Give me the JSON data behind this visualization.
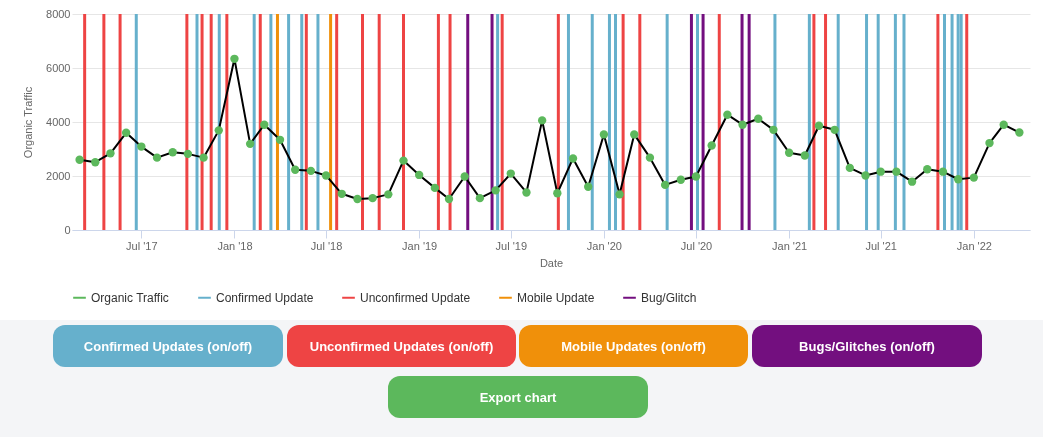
{
  "chart_data": {
    "type": "line",
    "xlabel": "Date",
    "ylabel": "Organic Traffic",
    "x": [
      "2017-03",
      "2017-04",
      "2017-05",
      "2017-06",
      "2017-07",
      "2017-08",
      "2017-09",
      "2017-10",
      "2017-11",
      "2017-12",
      "2018-01",
      "2018-02",
      "2018-03",
      "2018-04",
      "2018-05",
      "2018-06",
      "2018-07",
      "2018-08",
      "2018-09",
      "2018-10",
      "2018-11",
      "2018-12",
      "2019-01",
      "2019-02",
      "2019-03",
      "2019-04",
      "2019-05",
      "2019-06",
      "2019-07",
      "2019-08",
      "2019-09",
      "2019-10",
      "2019-11",
      "2019-12",
      "2020-01",
      "2020-02",
      "2020-03",
      "2020-04",
      "2020-05",
      "2020-06",
      "2020-07",
      "2020-08",
      "2020-09",
      "2020-10",
      "2020-11",
      "2020-12",
      "2021-01",
      "2021-02",
      "2021-03",
      "2021-04",
      "2021-05",
      "2021-06",
      "2021-07",
      "2021-08",
      "2021-09",
      "2021-10",
      "2021-11",
      "2021-12",
      "2022-01",
      "2022-02",
      "2022-03",
      "2022-04"
    ],
    "series": [
      {
        "name": "Organic Traffic",
        "color": "#5cb85c",
        "values": [
          2600,
          2510,
          2840,
          3600,
          3090,
          2680,
          2880,
          2820,
          2680,
          3690,
          6340,
          3190,
          3900,
          3340,
          2230,
          2190,
          2020,
          1340,
          1150,
          1180,
          1320,
          2570,
          2040,
          1560,
          1150,
          1980,
          1180,
          1470,
          2090,
          1390,
          4060,
          1360,
          2650,
          1600,
          3540,
          1320,
          3540,
          2680,
          1670,
          1860,
          1980,
          3130,
          4270,
          3900,
          4120,
          3710,
          2860,
          2760,
          3860,
          3710,
          2300,
          2020,
          2160,
          2160,
          1790,
          2250,
          2160,
          1880,
          1940,
          3220,
          3900,
          3610
        ]
      }
    ],
    "xlim": [
      "2017-02-14",
      "2022-04-22"
    ],
    "xticks": [
      {
        "value": "2017-07-01",
        "label": "Jul '17"
      },
      {
        "value": "2018-01-01",
        "label": "Jan '18"
      },
      {
        "value": "2018-07-01",
        "label": "Jul '18"
      },
      {
        "value": "2019-01-01",
        "label": "Jan '19"
      },
      {
        "value": "2019-07-01",
        "label": "Jul '19"
      },
      {
        "value": "2020-01-01",
        "label": "Jan '20"
      },
      {
        "value": "2020-07-01",
        "label": "Jul '20"
      },
      {
        "value": "2021-01-01",
        "label": "Jan '21"
      },
      {
        "value": "2021-07-01",
        "label": "Jul '21"
      },
      {
        "value": "2022-01-01",
        "label": "Jan '22"
      }
    ],
    "ylim": [
      0,
      8000
    ],
    "yticks": [
      0,
      2000,
      4000,
      6000,
      8000
    ],
    "grid": "y",
    "marker": "circle",
    "legend": "bottom",
    "ref_lines": [
      {
        "axis": "x",
        "value": "2017-06-21",
        "label": "Confirmed Update",
        "color": "#66b0cc"
      },
      {
        "axis": "x",
        "value": "2017-10-19",
        "color": "#66b0cc"
      },
      {
        "axis": "x",
        "value": "2017-12-02",
        "color": "#66b0cc"
      },
      {
        "axis": "x",
        "value": "2018-02-09",
        "color": "#66b0cc"
      },
      {
        "axis": "x",
        "value": "2018-03-14",
        "color": "#66b0cc"
      },
      {
        "axis": "x",
        "value": "2018-04-18",
        "color": "#66b0cc"
      },
      {
        "axis": "x",
        "value": "2018-05-14",
        "color": "#66b0cc"
      },
      {
        "axis": "x",
        "value": "2018-06-15",
        "color": "#66b0cc"
      },
      {
        "axis": "x",
        "value": "2019-06-05",
        "color": "#66b0cc"
      },
      {
        "axis": "x",
        "value": "2019-10-23",
        "color": "#66b0cc"
      },
      {
        "axis": "x",
        "value": "2019-12-09",
        "color": "#66b0cc"
      },
      {
        "axis": "x",
        "value": "2020-01-12",
        "color": "#66b0cc"
      },
      {
        "axis": "x",
        "value": "2020-01-24",
        "color": "#66b0cc"
      },
      {
        "axis": "x",
        "value": "2020-05-05",
        "color": "#66b0cc"
      },
      {
        "axis": "x",
        "value": "2020-07-04",
        "color": "#66b0cc"
      },
      {
        "axis": "x",
        "value": "2020-12-04",
        "color": "#66b0cc"
      },
      {
        "axis": "x",
        "value": "2021-02-10",
        "color": "#66b0cc"
      },
      {
        "axis": "x",
        "value": "2021-04-08",
        "color": "#66b0cc"
      },
      {
        "axis": "x",
        "value": "2021-06-03",
        "color": "#66b0cc"
      },
      {
        "axis": "x",
        "value": "2021-06-26",
        "color": "#66b0cc"
      },
      {
        "axis": "x",
        "value": "2021-07-30",
        "color": "#66b0cc"
      },
      {
        "axis": "x",
        "value": "2021-08-16",
        "color": "#66b0cc"
      },
      {
        "axis": "x",
        "value": "2021-11-04",
        "color": "#66b0cc"
      },
      {
        "axis": "x",
        "value": "2021-11-19",
        "color": "#66b0cc"
      },
      {
        "axis": "x",
        "value": "2021-12-01",
        "color": "#66b0cc"
      },
      {
        "axis": "x",
        "value": "2021-12-07",
        "color": "#66b0cc"
      },
      {
        "axis": "x",
        "value": "2017-03-11",
        "label": "Unconfirmed Update",
        "color": "#ee4444"
      },
      {
        "axis": "x",
        "value": "2017-04-18",
        "color": "#ee4444"
      },
      {
        "axis": "x",
        "value": "2017-05-20",
        "color": "#ee4444"
      },
      {
        "axis": "x",
        "value": "2017-09-29",
        "color": "#ee4444"
      },
      {
        "axis": "x",
        "value": "2017-10-29",
        "color": "#ee4444"
      },
      {
        "axis": "x",
        "value": "2017-11-16",
        "color": "#ee4444"
      },
      {
        "axis": "x",
        "value": "2017-12-17",
        "color": "#ee4444"
      },
      {
        "axis": "x",
        "value": "2018-02-21",
        "color": "#ee4444"
      },
      {
        "axis": "x",
        "value": "2018-05-23",
        "color": "#ee4444"
      },
      {
        "axis": "x",
        "value": "2018-07-22",
        "color": "#ee4444"
      },
      {
        "axis": "x",
        "value": "2018-09-11",
        "color": "#ee4444"
      },
      {
        "axis": "x",
        "value": "2018-10-14",
        "color": "#ee4444"
      },
      {
        "axis": "x",
        "value": "2018-12-01",
        "color": "#ee4444"
      },
      {
        "axis": "x",
        "value": "2019-02-08",
        "color": "#ee4444"
      },
      {
        "axis": "x",
        "value": "2019-03-03",
        "color": "#ee4444"
      },
      {
        "axis": "x",
        "value": "2019-06-14",
        "color": "#ee4444"
      },
      {
        "axis": "x",
        "value": "2019-10-03",
        "color": "#ee4444"
      },
      {
        "axis": "x",
        "value": "2020-02-08",
        "color": "#ee4444"
      },
      {
        "axis": "x",
        "value": "2020-03-12",
        "color": "#ee4444"
      },
      {
        "axis": "x",
        "value": "2020-08-16",
        "color": "#ee4444"
      },
      {
        "axis": "x",
        "value": "2021-02-19",
        "color": "#ee4444"
      },
      {
        "axis": "x",
        "value": "2021-03-14",
        "color": "#ee4444"
      },
      {
        "axis": "x",
        "value": "2021-10-22",
        "color": "#ee4444"
      },
      {
        "axis": "x",
        "value": "2021-12-18",
        "color": "#ee4444"
      },
      {
        "axis": "x",
        "value": "2018-03-27",
        "label": "Mobile Update",
        "color": "#f0900a"
      },
      {
        "axis": "x",
        "value": "2018-07-10",
        "color": "#f0900a"
      },
      {
        "axis": "x",
        "value": "2019-04-07",
        "label": "Bug/Glitch",
        "color": "#730f7f"
      },
      {
        "axis": "x",
        "value": "2019-05-25",
        "color": "#730f7f"
      },
      {
        "axis": "x",
        "value": "2020-06-22",
        "color": "#730f7f"
      },
      {
        "axis": "x",
        "value": "2020-07-15",
        "color": "#730f7f"
      },
      {
        "axis": "x",
        "value": "2020-09-30",
        "color": "#730f7f"
      },
      {
        "axis": "x",
        "value": "2020-10-14",
        "color": "#730f7f"
      }
    ],
    "annotations": [
      "Confirmed Updates (on/off)",
      "Unconfirmed Updates (on/off)",
      "Mobile Updates (on/off)",
      "Bugs/Glitches (on/off)",
      "Export chart"
    ]
  }
}
